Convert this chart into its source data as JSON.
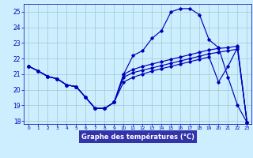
{
  "xlabel": "Graphe des températures (°C)",
  "hours": [
    0,
    1,
    2,
    3,
    4,
    5,
    6,
    7,
    8,
    9,
    10,
    11,
    12,
    13,
    14,
    15,
    16,
    17,
    18,
    19,
    20,
    21,
    22,
    23
  ],
  "curve_main": [
    21.5,
    21.2,
    20.85,
    20.7,
    20.3,
    20.2,
    19.5,
    18.8,
    18.8,
    19.2,
    21.0,
    22.2,
    22.5,
    23.3,
    23.8,
    25.0,
    25.2,
    25.2,
    24.8,
    23.2,
    22.7,
    20.8,
    19.0,
    17.9
  ],
  "line_a": [
    21.5,
    21.2,
    20.85,
    20.7,
    20.3,
    20.2,
    19.5,
    18.8,
    18.8,
    19.2,
    21.0,
    21.3,
    21.5,
    21.65,
    21.8,
    21.95,
    22.1,
    22.25,
    22.4,
    22.55,
    22.65,
    22.7,
    22.8,
    17.9
  ],
  "line_b": [
    21.5,
    21.2,
    20.85,
    20.7,
    20.3,
    20.2,
    19.5,
    18.8,
    18.8,
    19.2,
    20.8,
    21.1,
    21.25,
    21.4,
    21.55,
    21.7,
    21.85,
    22.0,
    22.15,
    22.3,
    22.4,
    22.5,
    22.6,
    17.9
  ],
  "line_c": [
    21.5,
    21.2,
    20.85,
    20.7,
    20.3,
    20.2,
    19.5,
    18.8,
    18.8,
    19.2,
    20.5,
    20.8,
    21.0,
    21.2,
    21.35,
    21.5,
    21.65,
    21.8,
    21.95,
    22.1,
    20.5,
    21.5,
    22.7,
    17.9
  ],
  "ylim_min": 17.8,
  "ylim_max": 25.5,
  "yticks": [
    18,
    19,
    20,
    21,
    22,
    23,
    24,
    25
  ],
  "line_color": "#0000bb",
  "bg_color": "#cceeff",
  "grid_color": "#99cccc",
  "axis_bar_color": "#3333aa"
}
